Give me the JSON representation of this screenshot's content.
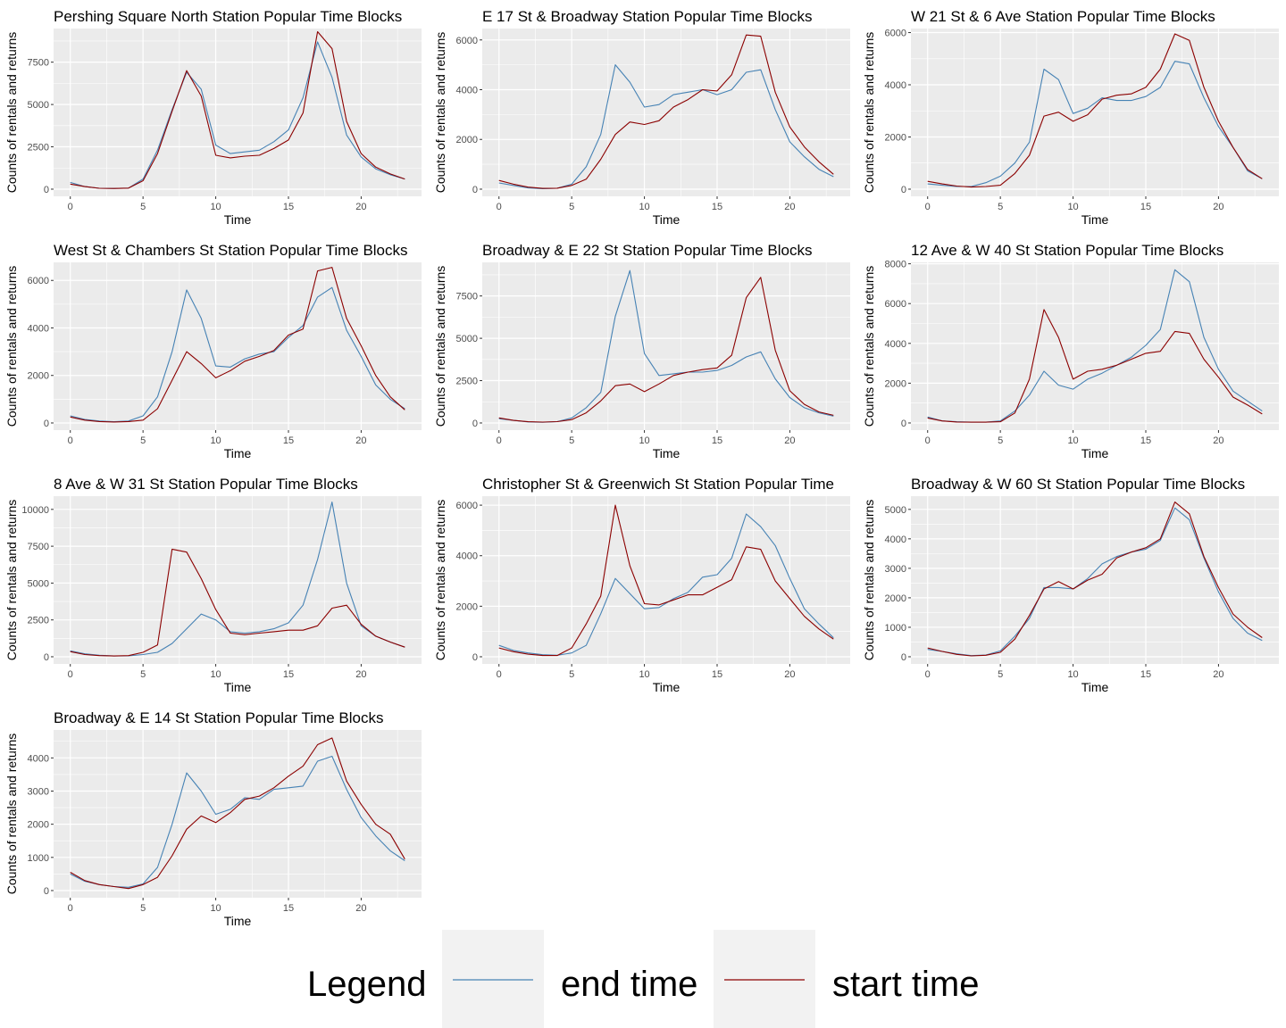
{
  "colors": {
    "end_time": "#4682B4",
    "start_time": "#8B0000",
    "panel_bg": "#EBEBEB",
    "grid": "#FFFFFF",
    "legend_key_bg": "#F2F2F2"
  },
  "legend": {
    "title": "Legend",
    "placement": "bottom",
    "entries": [
      {
        "label": "end time",
        "color": "#4682B4"
      },
      {
        "label": "start time",
        "color": "#8B0000"
      }
    ]
  },
  "chart_data": [
    {
      "type": "line",
      "title": "Pershing Square North Station Popular Time Blocks",
      "xlabel": "Time",
      "ylabel": "Counts of rentals and returns",
      "xlim": [
        0,
        23
      ],
      "x_ticks": [
        0,
        5,
        10,
        15,
        20
      ],
      "ylim": [
        0,
        9400
      ],
      "y_ticks": [
        0,
        2500,
        5000,
        7500
      ],
      "y_tick_labels": [
        "0",
        "2500",
        "5000",
        "7500"
      ],
      "grid": true,
      "x": [
        0,
        1,
        2,
        3,
        4,
        5,
        6,
        7,
        8,
        9,
        10,
        11,
        12,
        13,
        14,
        15,
        16,
        17,
        18,
        19,
        20,
        21,
        22,
        23
      ],
      "series": [
        {
          "name": "end time",
          "values": [
            400,
            150,
            50,
            40,
            60,
            600,
            2300,
            4700,
            6900,
            5900,
            2600,
            2100,
            2200,
            2300,
            2800,
            3500,
            5400,
            8700,
            6600,
            3200,
            1900,
            1200,
            850,
            600
          ]
        },
        {
          "name": "start time",
          "values": [
            300,
            150,
            50,
            40,
            60,
            500,
            2100,
            4600,
            7000,
            5500,
            2000,
            1850,
            1950,
            2000,
            2400,
            2900,
            4500,
            9300,
            8300,
            4000,
            2100,
            1300,
            900,
            600
          ]
        }
      ]
    },
    {
      "type": "line",
      "title": "E 17 St & Broadway Station Popular Time Blocks",
      "xlabel": "Time",
      "ylabel": "Counts of rentals and returns",
      "xlim": [
        0,
        23
      ],
      "x_ticks": [
        0,
        5,
        10,
        15,
        20
      ],
      "ylim": [
        0,
        6400
      ],
      "y_ticks": [
        0,
        2000,
        4000,
        6000
      ],
      "y_tick_labels": [
        "0",
        "2000",
        "4000",
        "6000"
      ],
      "grid": true,
      "x": [
        0,
        1,
        2,
        3,
        4,
        5,
        6,
        7,
        8,
        9,
        10,
        11,
        12,
        13,
        14,
        15,
        16,
        17,
        18,
        19,
        20,
        21,
        22,
        23
      ],
      "series": [
        {
          "name": "end time",
          "values": [
            250,
            150,
            50,
            20,
            40,
            200,
            900,
            2200,
            5000,
            4300,
            3300,
            3400,
            3800,
            3900,
            4000,
            3800,
            4000,
            4700,
            4800,
            3200,
            1900,
            1300,
            800,
            500
          ]
        },
        {
          "name": "start time",
          "values": [
            350,
            200,
            80,
            30,
            40,
            150,
            400,
            1200,
            2200,
            2700,
            2600,
            2750,
            3300,
            3600,
            4000,
            3950,
            4600,
            6200,
            6150,
            3900,
            2500,
            1700,
            1100,
            600
          ]
        }
      ]
    },
    {
      "type": "line",
      "title": "W 21 St & 6 Ave Station Popular Time Blocks",
      "xlabel": "Time",
      "ylabel": "Counts of rentals and returns",
      "xlim": [
        0,
        23
      ],
      "x_ticks": [
        0,
        5,
        10,
        15,
        20
      ],
      "ylim": [
        0,
        6100
      ],
      "y_ticks": [
        0,
        2000,
        4000,
        6000
      ],
      "y_tick_labels": [
        "0",
        "2000",
        "4000",
        "6000"
      ],
      "grid": true,
      "x": [
        0,
        1,
        2,
        3,
        4,
        5,
        6,
        7,
        8,
        9,
        10,
        11,
        12,
        13,
        14,
        15,
        16,
        17,
        18,
        19,
        20,
        21,
        22,
        23
      ],
      "series": [
        {
          "name": "end time",
          "values": [
            200,
            150,
            100,
            100,
            250,
            500,
            1000,
            1800,
            4600,
            4200,
            2900,
            3100,
            3500,
            3400,
            3400,
            3550,
            3900,
            4900,
            4800,
            3500,
            2400,
            1600,
            700,
            400
          ]
        },
        {
          "name": "start time",
          "values": [
            300,
            200,
            120,
            80,
            100,
            150,
            600,
            1300,
            2800,
            2950,
            2600,
            2850,
            3450,
            3600,
            3650,
            3900,
            4600,
            5950,
            5700,
            3900,
            2600,
            1600,
            750,
            400
          ]
        }
      ]
    },
    {
      "type": "line",
      "title": "West St & Chambers St Station Popular Time Blocks",
      "xlabel": "Time",
      "ylabel": "Counts of rentals and returns",
      "xlim": [
        0,
        23
      ],
      "x_ticks": [
        0,
        5,
        10,
        15,
        20
      ],
      "ylim": [
        0,
        6700
      ],
      "y_ticks": [
        0,
        2000,
        4000,
        6000
      ],
      "y_tick_labels": [
        "0",
        "2000",
        "4000",
        "6000"
      ],
      "grid": true,
      "x": [
        0,
        1,
        2,
        3,
        4,
        5,
        6,
        7,
        8,
        9,
        10,
        11,
        12,
        13,
        14,
        15,
        16,
        17,
        18,
        19,
        20,
        21,
        22,
        23
      ],
      "series": [
        {
          "name": "end time",
          "values": [
            300,
            150,
            80,
            50,
            80,
            300,
            1100,
            3000,
            5600,
            4400,
            2400,
            2350,
            2700,
            2900,
            3000,
            3600,
            4100,
            5300,
            5700,
            3900,
            2800,
            1600,
            1000,
            600
          ]
        },
        {
          "name": "start time",
          "values": [
            250,
            120,
            60,
            40,
            60,
            120,
            600,
            1800,
            3000,
            2500,
            1900,
            2200,
            2600,
            2800,
            3050,
            3700,
            3950,
            6400,
            6550,
            4400,
            3250,
            2000,
            1100,
            550
          ]
        }
      ]
    },
    {
      "type": "line",
      "title": "Broadway & E 22 St Station Popular Time Blocks",
      "xlabel": "Time",
      "ylabel": "Counts of rentals and returns",
      "xlim": [
        0,
        23
      ],
      "x_ticks": [
        0,
        5,
        10,
        15,
        20
      ],
      "ylim": [
        0,
        9400
      ],
      "y_ticks": [
        0,
        2500,
        5000,
        7500
      ],
      "y_tick_labels": [
        "0",
        "2500",
        "5000",
        "7500"
      ],
      "grid": true,
      "x": [
        0,
        1,
        2,
        3,
        4,
        5,
        6,
        7,
        8,
        9,
        10,
        11,
        12,
        13,
        14,
        15,
        16,
        17,
        18,
        19,
        20,
        21,
        22,
        23
      ],
      "series": [
        {
          "name": "end time",
          "values": [
            250,
            150,
            60,
            40,
            80,
            300,
            900,
            1800,
            6300,
            9000,
            4100,
            2800,
            2900,
            3000,
            3000,
            3100,
            3400,
            3900,
            4200,
            2600,
            1500,
            900,
            600,
            400
          ]
        },
        {
          "name": "start time",
          "values": [
            300,
            150,
            70,
            50,
            80,
            200,
            600,
            1300,
            2200,
            2300,
            1850,
            2300,
            2800,
            3000,
            3150,
            3250,
            4000,
            7400,
            8600,
            4300,
            1900,
            1100,
            650,
            450
          ]
        }
      ]
    },
    {
      "type": "line",
      "title": "12 Ave & W 40 St Station Popular Time Blocks",
      "xlabel": "Time",
      "ylabel": "Counts of rentals and returns",
      "xlim": [
        0,
        23
      ],
      "x_ticks": [
        0,
        5,
        10,
        15,
        20
      ],
      "ylim": [
        0,
        8000
      ],
      "y_ticks": [
        0,
        2000,
        4000,
        6000,
        8000
      ],
      "y_tick_labels": [
        "0",
        "2000",
        "4000",
        "6000",
        "8000"
      ],
      "grid": true,
      "x": [
        0,
        1,
        2,
        3,
        4,
        5,
        6,
        7,
        8,
        9,
        10,
        11,
        12,
        13,
        14,
        15,
        16,
        17,
        18,
        19,
        20,
        21,
        22,
        23
      ],
      "series": [
        {
          "name": "end time",
          "values": [
            300,
            100,
            60,
            40,
            40,
            100,
            600,
            1400,
            2600,
            1900,
            1700,
            2200,
            2500,
            2900,
            3300,
            3900,
            4700,
            7700,
            7100,
            4300,
            2700,
            1600,
            1100,
            600
          ]
        },
        {
          "name": "start time",
          "values": [
            250,
            100,
            50,
            40,
            40,
            60,
            500,
            2200,
            5700,
            4300,
            2200,
            2600,
            2700,
            2900,
            3200,
            3500,
            3600,
            4600,
            4500,
            3200,
            2300,
            1300,
            900,
            450
          ]
        }
      ]
    },
    {
      "type": "line",
      "title": "8 Ave & W 31 St Station Popular Time Blocks",
      "xlabel": "Time",
      "ylabel": "Counts of rentals and returns",
      "xlim": [
        0,
        23
      ],
      "x_ticks": [
        0,
        5,
        10,
        15,
        20
      ],
      "ylim": [
        0,
        10800
      ],
      "y_ticks": [
        0,
        2500,
        5000,
        7500,
        10000
      ],
      "y_tick_labels": [
        "0",
        "2500",
        "5000",
        "7500",
        "10000"
      ],
      "grid": true,
      "x": [
        0,
        1,
        2,
        3,
        4,
        5,
        6,
        7,
        8,
        9,
        10,
        11,
        12,
        13,
        14,
        15,
        16,
        17,
        18,
        19,
        20,
        21,
        22,
        23
      ],
      "series": [
        {
          "name": "end time",
          "values": [
            400,
            200,
            100,
            50,
            60,
            150,
            300,
            900,
            1900,
            2900,
            2500,
            1700,
            1600,
            1700,
            1900,
            2300,
            3500,
            6600,
            10500,
            5000,
            2100,
            1400,
            1000,
            650
          ]
        },
        {
          "name": "start time",
          "values": [
            350,
            150,
            80,
            50,
            80,
            300,
            800,
            7300,
            7100,
            5300,
            3200,
            1600,
            1500,
            1600,
            1700,
            1800,
            1800,
            2100,
            3300,
            3500,
            2200,
            1400,
            1000,
            650
          ]
        }
      ]
    },
    {
      "type": "line",
      "title": "Christopher St & Greenwich St Station Popular Time",
      "xlabel": "Time",
      "ylabel": "Counts of rentals and returns",
      "xlim": [
        0,
        23
      ],
      "x_ticks": [
        0,
        5,
        10,
        15,
        20
      ],
      "ylim": [
        0,
        6300
      ],
      "y_ticks": [
        0,
        2000,
        4000,
        6000
      ],
      "y_tick_labels": [
        "0",
        "2000",
        "4000",
        "6000"
      ],
      "grid": true,
      "x": [
        0,
        1,
        2,
        3,
        4,
        5,
        6,
        7,
        8,
        9,
        10,
        11,
        12,
        13,
        14,
        15,
        16,
        17,
        18,
        19,
        20,
        21,
        22,
        23
      ],
      "series": [
        {
          "name": "end time",
          "values": [
            450,
            250,
            150,
            80,
            60,
            150,
            450,
            1700,
            3100,
            2500,
            1900,
            1950,
            2300,
            2550,
            3150,
            3250,
            3900,
            5650,
            5150,
            4400,
            3100,
            1900,
            1300,
            750
          ]
        },
        {
          "name": "start time",
          "values": [
            350,
            200,
            100,
            50,
            50,
            350,
            1300,
            2400,
            6000,
            3600,
            2100,
            2050,
            2250,
            2450,
            2450,
            2750,
            3050,
            4350,
            4250,
            3000,
            2300,
            1600,
            1100,
            700
          ]
        }
      ]
    },
    {
      "type": "line",
      "title": "Broadway & W 60 St Station Popular Time Blocks",
      "xlabel": "Time",
      "ylabel": "Counts of rentals and returns",
      "xlim": [
        0,
        23
      ],
      "x_ticks": [
        0,
        5,
        10,
        15,
        20
      ],
      "ylim": [
        0,
        5400
      ],
      "y_ticks": [
        0,
        1000,
        2000,
        3000,
        4000,
        5000
      ],
      "y_tick_labels": [
        "0",
        "1000",
        "2000",
        "3000",
        "4000",
        "5000"
      ],
      "grid": true,
      "x": [
        0,
        1,
        2,
        3,
        4,
        5,
        6,
        7,
        8,
        9,
        10,
        11,
        12,
        13,
        14,
        15,
        16,
        17,
        18,
        19,
        20,
        21,
        22,
        23
      ],
      "series": [
        {
          "name": "end time",
          "values": [
            250,
            180,
            100,
            40,
            60,
            200,
            700,
            1300,
            2350,
            2350,
            2300,
            2650,
            3150,
            3400,
            3550,
            3650,
            3950,
            5050,
            4650,
            3350,
            2200,
            1300,
            800,
            550
          ]
        },
        {
          "name": "start time",
          "values": [
            300,
            180,
            80,
            30,
            50,
            150,
            600,
            1400,
            2300,
            2550,
            2300,
            2600,
            2800,
            3350,
            3550,
            3700,
            4000,
            5250,
            4850,
            3400,
            2350,
            1450,
            1000,
            650
          ]
        }
      ]
    },
    {
      "type": "line",
      "title": "Broadway & E 14 St Station Popular Time Blocks",
      "xlabel": "Time",
      "ylabel": "Counts of rentals and returns",
      "xlim": [
        0,
        23
      ],
      "x_ticks": [
        0,
        5,
        10,
        15,
        20
      ],
      "ylim": [
        0,
        4800
      ],
      "y_ticks": [
        0,
        1000,
        2000,
        3000,
        4000
      ],
      "y_tick_labels": [
        "0",
        "1000",
        "2000",
        "3000",
        "4000"
      ],
      "grid": true,
      "x": [
        0,
        1,
        2,
        3,
        4,
        5,
        6,
        7,
        8,
        9,
        10,
        11,
        12,
        13,
        14,
        15,
        16,
        17,
        18,
        19,
        20,
        21,
        22,
        23
      ],
      "series": [
        {
          "name": "end time",
          "values": [
            500,
            280,
            180,
            120,
            100,
            200,
            700,
            2000,
            3550,
            3000,
            2300,
            2450,
            2800,
            2750,
            3050,
            3100,
            3150,
            3900,
            4050,
            3050,
            2200,
            1650,
            1200,
            900
          ]
        },
        {
          "name": "start time",
          "values": [
            550,
            300,
            180,
            120,
            60,
            180,
            400,
            1050,
            1850,
            2250,
            2050,
            2350,
            2750,
            2850,
            3100,
            3450,
            3750,
            4400,
            4600,
            3300,
            2600,
            2000,
            1700,
            950
          ]
        }
      ]
    }
  ]
}
